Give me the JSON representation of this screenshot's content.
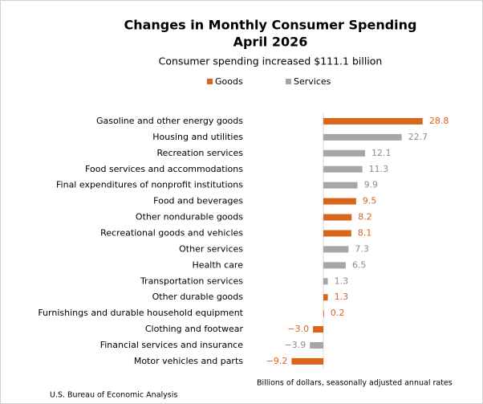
{
  "chart_data": {
    "type": "bar",
    "orientation": "horizontal",
    "title": [
      "Changes in Monthly Consumer Spending",
      "April 2026"
    ],
    "subtitle": "Consumer spending increased $111.1 billion",
    "x_label": "Billions of dollars, seasonally adjusted annual rates",
    "source": "U.S. Bureau of Economic Analysis",
    "categories": [
      "Gasoline and other energy goods",
      "Housing and utilities",
      "Recreation services",
      "Food services and accommodations",
      "Final expenditures of nonprofit institutions",
      "Food and beverages",
      "Other nondurable goods",
      "Recreational goods and vehicles",
      "Other services",
      "Health care",
      "Transportation services",
      "Other durable goods",
      "Furnishings and durable household equipment",
      "Clothing and footwear",
      "Financial services and insurance",
      "Motor vehicles and parts"
    ],
    "series": [
      {
        "name": "Goods",
        "color": "#d9641b",
        "label_color": "#d9641b",
        "values": [
          28.8,
          null,
          null,
          null,
          null,
          9.5,
          8.2,
          8.1,
          null,
          null,
          null,
          1.3,
          0.2,
          -3.0,
          null,
          -9.2
        ],
        "value_labels": [
          "28.8",
          null,
          null,
          null,
          null,
          "9.5",
          "8.2",
          "8.1",
          null,
          null,
          null,
          "1.3",
          "0.2",
          "−3.0",
          null,
          "−9.2"
        ]
      },
      {
        "name": "Services",
        "color": "#a6a6a6",
        "label_color": "#8c8c8c",
        "values": [
          null,
          22.7,
          12.1,
          11.3,
          9.9,
          null,
          null,
          null,
          7.3,
          6.5,
          1.3,
          null,
          null,
          null,
          -3.9,
          null
        ],
        "value_labels": [
          null,
          "22.7",
          "12.1",
          "11.3",
          "9.9",
          null,
          null,
          null,
          "7.3",
          "6.5",
          "1.3",
          null,
          null,
          null,
          "−3.9",
          null
        ]
      }
    ],
    "xlim": [
      -10,
      30
    ],
    "grid": false,
    "legend": "top"
  }
}
